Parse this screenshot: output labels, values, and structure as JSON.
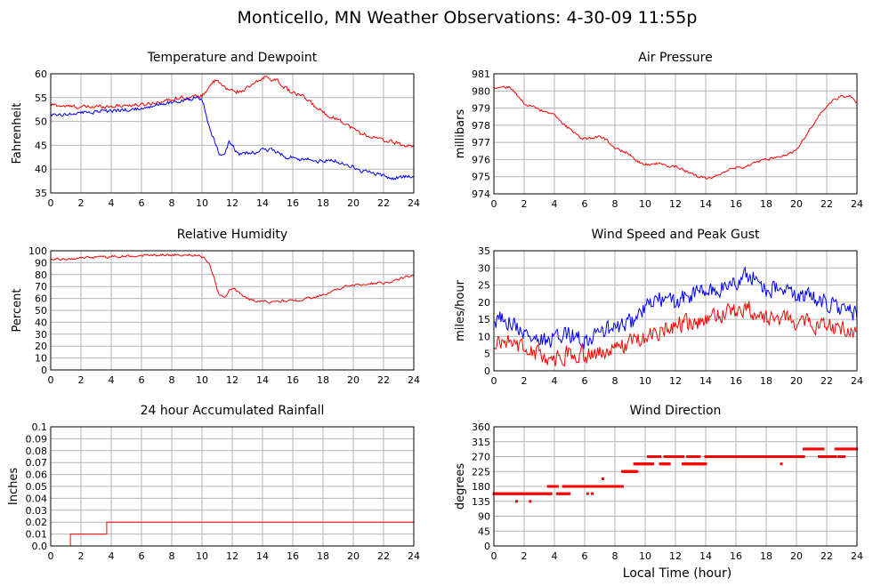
{
  "title": "Monticello, MN Weather Observations: 4-30-09 11:55p",
  "xlabel": "Local Time (hour)",
  "colors": {
    "red": "#ff0000",
    "blue": "#0000ff",
    "grid": "#b4b4b4",
    "frame": "#000000"
  },
  "chart_data": [
    {
      "id": "temp",
      "type": "line",
      "title": "Temperature and Dewpoint",
      "ylabel": "Fahrenheit",
      "xlim": [
        0,
        24
      ],
      "ylim": [
        35,
        60
      ],
      "xticks": [
        0,
        2,
        4,
        6,
        8,
        10,
        12,
        14,
        16,
        18,
        20,
        22,
        24
      ],
      "yticks": [
        35,
        40,
        45,
        50,
        55,
        60
      ],
      "noise": 0.35,
      "series": [
        {
          "color": "red",
          "x": [
            0,
            1,
            2,
            3,
            4,
            5,
            6,
            7,
            8,
            8.5,
            9,
            9.5,
            10,
            10.3,
            10.6,
            10.9,
            11.2,
            11.5,
            12,
            12.5,
            13,
            13.5,
            14,
            14.2,
            14.5,
            15,
            15.5,
            16,
            16.5,
            17,
            17.5,
            18,
            18.5,
            19,
            19.5,
            20,
            20.5,
            21,
            21.5,
            22,
            22.5,
            23,
            23.5,
            24
          ],
          "y": [
            53.5,
            53.2,
            53,
            53.1,
            53.2,
            53.4,
            53.5,
            54,
            54.6,
            55,
            55,
            55.2,
            55.3,
            56.5,
            58,
            58.5,
            58,
            57,
            56.5,
            56.2,
            57,
            58,
            59,
            59.5,
            59,
            58.5,
            57,
            56,
            55.5,
            54.5,
            53,
            52,
            51,
            50.5,
            49.5,
            48.5,
            47.5,
            47,
            46.5,
            46,
            45.8,
            45.3,
            44.8,
            45
          ]
        },
        {
          "color": "blue",
          "x": [
            0,
            1,
            2,
            3,
            4,
            5,
            6,
            7,
            8,
            9,
            9.5,
            10,
            10.3,
            10.6,
            10.9,
            11.1,
            11.3,
            11.6,
            11.8,
            12.2,
            12.5,
            13,
            13.5,
            14,
            14.5,
            15,
            15.5,
            16,
            16.5,
            17,
            17.5,
            18,
            18.5,
            19,
            19.5,
            20,
            20.5,
            21,
            21.5,
            22,
            22.5,
            23,
            23.5,
            24
          ],
          "y": [
            51.5,
            51.5,
            51.8,
            52,
            52.2,
            52.4,
            52.8,
            53.5,
            54,
            54.5,
            55,
            54.5,
            51,
            48,
            45,
            43.5,
            42.5,
            44,
            46,
            44,
            43,
            43.5,
            43.5,
            44,
            44,
            43.5,
            42.5,
            42.5,
            42,
            42,
            41.5,
            41.8,
            42,
            41.5,
            41,
            40.5,
            39.5,
            39.5,
            39,
            38.5,
            38,
            38.3,
            38.5,
            38.5
          ]
        }
      ]
    },
    {
      "id": "pressure",
      "type": "line",
      "title": "Air Pressure",
      "ylabel": "millibars",
      "xlim": [
        0,
        24
      ],
      "ylim": [
        974,
        981
      ],
      "xticks": [
        0,
        2,
        4,
        6,
        8,
        10,
        12,
        14,
        16,
        18,
        20,
        22,
        24
      ],
      "yticks": [
        974,
        975,
        976,
        977,
        978,
        979,
        980,
        981
      ],
      "noise": 0.07,
      "series": [
        {
          "color": "red",
          "x": [
            0,
            0.5,
            1,
            1.3,
            1.7,
            2,
            2.5,
            3,
            3.5,
            4,
            4.5,
            5,
            5.5,
            6,
            6.5,
            7,
            7.5,
            8,
            8.5,
            9,
            9.5,
            10,
            10.5,
            11,
            11.5,
            12,
            12.5,
            13,
            13.5,
            14,
            14.5,
            15,
            15.5,
            16,
            16.5,
            17,
            17.5,
            18,
            18.5,
            19,
            19.5,
            20,
            20.5,
            21,
            21.5,
            22,
            22.5,
            23,
            23.5,
            24
          ],
          "y": [
            980.2,
            980.2,
            980.2,
            980.0,
            979.6,
            979.3,
            979.1,
            978.9,
            978.7,
            978.6,
            978.1,
            977.8,
            977.4,
            977.2,
            977.2,
            977.4,
            977.1,
            976.7,
            976.5,
            976.3,
            975.9,
            975.7,
            975.7,
            975.8,
            975.6,
            975.6,
            975.4,
            975.2,
            975.0,
            974.9,
            975.0,
            975.2,
            975.4,
            975.5,
            975.5,
            975.7,
            975.9,
            976.0,
            976.1,
            976.2,
            976.3,
            976.6,
            977.2,
            977.9,
            978.6,
            979.1,
            979.5,
            979.7,
            979.7,
            979.3
          ]
        }
      ]
    },
    {
      "id": "humidity",
      "type": "line",
      "title": "Relative Humidity",
      "ylabel": "Percent",
      "xlim": [
        0,
        24
      ],
      "ylim": [
        0,
        100
      ],
      "xticks": [
        0,
        2,
        4,
        6,
        8,
        10,
        12,
        14,
        16,
        18,
        20,
        22,
        24
      ],
      "yticks": [
        0,
        10,
        20,
        30,
        40,
        50,
        60,
        70,
        80,
        90,
        100
      ],
      "noise": 0.9,
      "series": [
        {
          "color": "red",
          "x": [
            0,
            1,
            2,
            3,
            4,
            5,
            6,
            7,
            8,
            9,
            9.8,
            10.2,
            10.5,
            10.8,
            11,
            11.2,
            11.5,
            11.8,
            12,
            12.5,
            13,
            13.5,
            14,
            14.5,
            15,
            15.5,
            16,
            16.5,
            17,
            17.5,
            18,
            18.5,
            19,
            19.5,
            20,
            20.5,
            21,
            21.5,
            22,
            22.5,
            23,
            23.5,
            24
          ],
          "y": [
            92.5,
            93,
            94,
            94.5,
            95,
            95.5,
            96,
            96.5,
            96.5,
            96.5,
            96,
            94,
            88,
            78,
            68,
            62,
            61,
            66,
            69,
            64,
            60,
            58,
            58,
            57,
            57.5,
            58,
            58,
            59,
            60,
            61,
            63,
            65,
            68,
            70,
            71,
            72,
            72,
            73,
            73,
            74,
            76,
            78,
            79
          ]
        }
      ]
    },
    {
      "id": "wind",
      "type": "line",
      "title": "Wind Speed and Peak Gust",
      "ylabel": "miles/hour",
      "xlim": [
        0,
        24
      ],
      "ylim": [
        0,
        35
      ],
      "xticks": [
        0,
        2,
        4,
        6,
        8,
        10,
        12,
        14,
        16,
        18,
        20,
        22,
        24
      ],
      "yticks": [
        0,
        5,
        10,
        15,
        20,
        25,
        30,
        35
      ],
      "noise": 2.4,
      "series": [
        {
          "color": "blue",
          "x": [
            0,
            0.5,
            1,
            1.5,
            2,
            2.5,
            3,
            3.5,
            4,
            4.5,
            5,
            5.5,
            6,
            6.5,
            7,
            7.5,
            8,
            8.5,
            9,
            9.5,
            10,
            10.5,
            11,
            11.5,
            12,
            12.5,
            13,
            13.5,
            14,
            14.5,
            15,
            15.5,
            16,
            16.5,
            17,
            17.5,
            18,
            18.5,
            19,
            19.5,
            20,
            20.5,
            21,
            21.5,
            22,
            22.5,
            23,
            23.5,
            24
          ],
          "y": [
            14,
            15,
            15,
            13,
            11,
            10,
            9,
            8,
            9,
            10,
            11,
            10,
            9,
            10,
            11,
            12,
            12,
            13,
            14,
            16,
            18,
            20,
            21,
            20,
            20,
            21,
            22,
            23,
            23,
            23,
            24,
            25,
            26,
            27,
            28,
            26,
            24,
            24,
            23,
            23,
            22,
            22,
            21,
            21,
            20,
            19,
            18,
            17,
            16
          ]
        },
        {
          "color": "red",
          "x": [
            0,
            0.5,
            1,
            1.5,
            2,
            2.5,
            3,
            3.5,
            4,
            4.5,
            5,
            5.5,
            6,
            6.5,
            7,
            7.5,
            8,
            8.5,
            9,
            9.5,
            10,
            10.5,
            11,
            11.5,
            12,
            12.5,
            13,
            13.5,
            14,
            14.5,
            15,
            15.5,
            16,
            16.5,
            17,
            17.5,
            18,
            18.5,
            19,
            19.5,
            20,
            20.5,
            21,
            21.5,
            22,
            22.5,
            23,
            23.5,
            24
          ],
          "y": [
            8,
            8,
            8,
            7,
            6,
            5,
            4.5,
            4,
            4,
            4.5,
            5,
            5,
            4.5,
            5,
            5.5,
            6,
            6.5,
            7,
            8,
            9,
            10,
            11,
            12,
            12.5,
            13,
            13.5,
            14,
            14.5,
            15,
            15.5,
            16,
            16.5,
            17,
            17.5,
            18,
            17,
            16,
            16,
            15.5,
            15,
            14.5,
            14,
            14,
            13.5,
            13,
            12.5,
            12,
            11.5,
            11
          ]
        }
      ]
    },
    {
      "id": "rain",
      "type": "line",
      "title": "24 hour Accumulated Rainfall",
      "ylabel": "Inches",
      "xlim": [
        0,
        24
      ],
      "ylim": [
        0,
        0.1
      ],
      "xticks": [
        0,
        2,
        4,
        6,
        8,
        10,
        12,
        14,
        16,
        18,
        20,
        22,
        24
      ],
      "yticks": [
        0.0,
        0.01,
        0.02,
        0.03,
        0.04,
        0.05,
        0.06,
        0.07,
        0.08,
        0.09,
        0.1
      ],
      "step": true,
      "noise": 0,
      "series": [
        {
          "color": "red",
          "x": [
            0,
            1.3,
            3.7,
            24
          ],
          "y": [
            0,
            0.01,
            0.02,
            0.02
          ]
        }
      ]
    },
    {
      "id": "direction",
      "type": "scatter",
      "title": "Wind Direction",
      "ylabel": "degrees",
      "xlim": [
        0,
        24
      ],
      "ylim": [
        0,
        360
      ],
      "xticks": [
        0,
        2,
        4,
        6,
        8,
        10,
        12,
        14,
        16,
        18,
        20,
        22,
        24
      ],
      "yticks": [
        0,
        45,
        90,
        135,
        180,
        225,
        270,
        315,
        360
      ],
      "segments": [
        {
          "from": 0,
          "to": 3.8,
          "y": 158
        },
        {
          "from": 1.5,
          "to": 1.5,
          "y": 135
        },
        {
          "from": 2.4,
          "to": 2.4,
          "y": 135
        },
        {
          "from": 3.6,
          "to": 4.2,
          "y": 180
        },
        {
          "from": 4.2,
          "to": 5.0,
          "y": 158
        },
        {
          "from": 4.6,
          "to": 8.5,
          "y": 180
        },
        {
          "from": 6.2,
          "to": 6.2,
          "y": 158
        },
        {
          "from": 6.5,
          "to": 6.5,
          "y": 158
        },
        {
          "from": 7.2,
          "to": 7.2,
          "y": 203
        },
        {
          "from": 8.5,
          "to": 9.5,
          "y": 225
        },
        {
          "from": 9.3,
          "to": 10.5,
          "y": 248
        },
        {
          "from": 10.2,
          "to": 11.0,
          "y": 270
        },
        {
          "from": 11.0,
          "to": 11.6,
          "y": 248
        },
        {
          "from": 11.3,
          "to": 12.5,
          "y": 270
        },
        {
          "from": 12.5,
          "to": 14.0,
          "y": 248
        },
        {
          "from": 12.8,
          "to": 13.6,
          "y": 270
        },
        {
          "from": 14.0,
          "to": 20.5,
          "y": 270
        },
        {
          "from": 19.0,
          "to": 19.0,
          "y": 248
        },
        {
          "from": 20.5,
          "to": 21.8,
          "y": 293
        },
        {
          "from": 21.5,
          "to": 22.6,
          "y": 270
        },
        {
          "from": 22.6,
          "to": 24.0,
          "y": 293
        },
        {
          "from": 22.8,
          "to": 23.2,
          "y": 270
        }
      ]
    }
  ]
}
